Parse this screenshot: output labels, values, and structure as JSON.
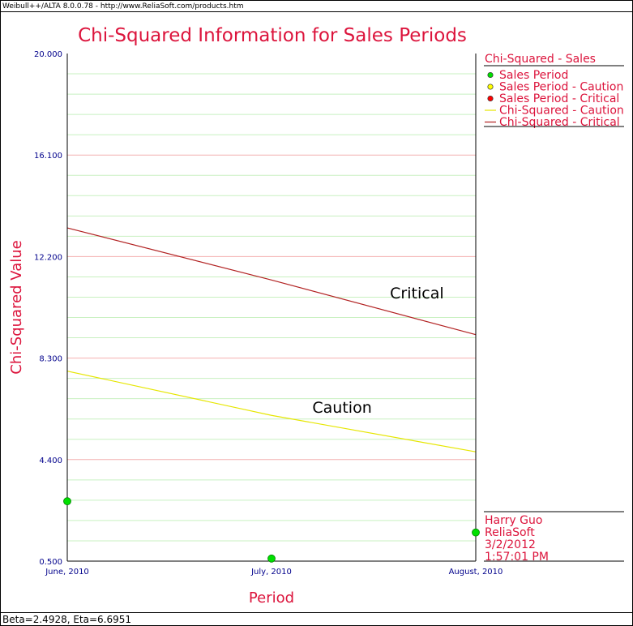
{
  "header_text": "Weibull++/ALTA 8.0.0.78 - http://www.ReliaSoft.com/products.htm",
  "footer_text": "Beta=2.4928, Eta=6.6951",
  "colors": {
    "title": "#dc143c",
    "axis_tick": "#00008b",
    "critical": "#b22222",
    "caution": "#e6e600",
    "point_fill": "#00e000",
    "grid_major": "#f4b0b0",
    "grid_minor": "#c8f0c0"
  },
  "chart_data": {
    "type": "line",
    "title": "Chi-Squared Information for Sales Periods",
    "xlabel": "Period",
    "ylabel": "Chi-Squared Value",
    "categories": [
      "June, 2010",
      "July, 2010",
      "August, 2010"
    ],
    "yticks": [
      "0.500",
      "4.400",
      "8.300",
      "12.200",
      "16.100",
      "20.000"
    ],
    "ylim": [
      0.5,
      20.0
    ],
    "grid": true,
    "series": [
      {
        "name": "Sales Period",
        "kind": "points",
        "values": [
          2.8,
          0.6,
          1.6
        ]
      },
      {
        "name": "Chi-Squared - Caution",
        "kind": "line",
        "values": [
          7.8,
          6.1,
          4.7
        ]
      },
      {
        "name": "Chi-Squared - Critical",
        "kind": "line",
        "values": [
          13.3,
          11.3,
          9.2
        ]
      }
    ],
    "annotations": [
      {
        "text": "Critical",
        "x": 1.58,
        "y": 10.6
      },
      {
        "text": "Caution",
        "x": 1.2,
        "y": 6.2
      }
    ],
    "legend": {
      "title": "Chi-Squared - Sales",
      "position": "right",
      "entries": [
        {
          "label": "Sales Period",
          "symbol": "dot",
          "color": "#00e000"
        },
        {
          "label": "Sales Period - Caution",
          "symbol": "dot",
          "color": "#ffff00"
        },
        {
          "label": "Sales Period - Critical",
          "symbol": "dot",
          "color": "#ff0000"
        },
        {
          "label": "Chi-Squared - Caution",
          "symbol": "line",
          "color": "#e6e600"
        },
        {
          "label": "Chi-Squared - Critical",
          "symbol": "line",
          "color": "#b22222"
        }
      ]
    }
  },
  "info_box": {
    "user": "Harry Guo",
    "company": "ReliaSoft",
    "date": "3/2/2012",
    "time": "1:57:01 PM"
  }
}
